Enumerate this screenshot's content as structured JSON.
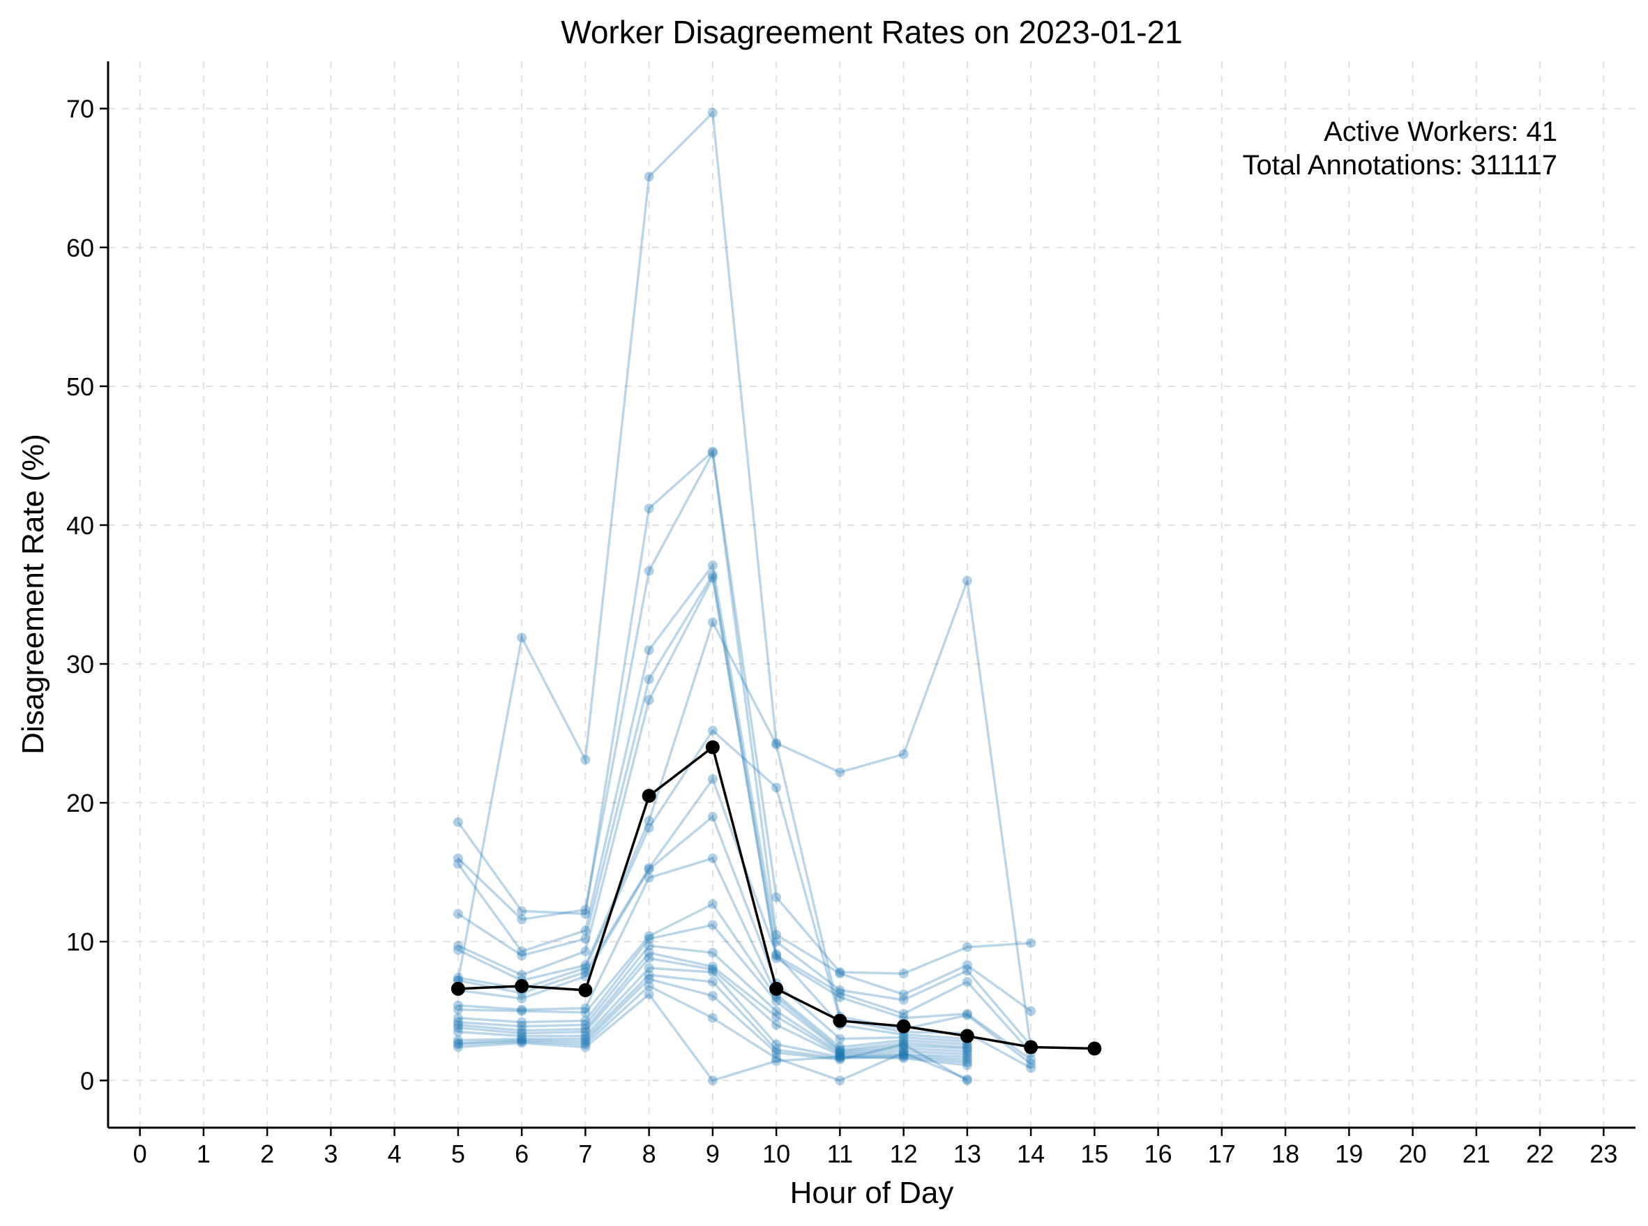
{
  "chart_data": {
    "type": "line",
    "title": "Worker Disagreement Rates on 2023-01-21",
    "xlabel": "Hour of Day",
    "ylabel": "Disagreement Rate (%)",
    "xlim": [
      -0.5,
      23.5
    ],
    "ylim": [
      -3.4,
      73.4
    ],
    "xticks": [
      0,
      1,
      2,
      3,
      4,
      5,
      6,
      7,
      8,
      9,
      10,
      11,
      12,
      13,
      14,
      15,
      16,
      17,
      18,
      19,
      20,
      21,
      22,
      23
    ],
    "yticks": [
      0,
      10,
      20,
      30,
      40,
      50,
      60,
      70
    ],
    "grid": true,
    "annotations": [
      "Active Workers: 41",
      "Total Annotations: 311117"
    ],
    "colors": {
      "worker": "#1f77b4",
      "mean": "#000000"
    },
    "mean_series": {
      "x": [
        5,
        6,
        7,
        8,
        9,
        10,
        11,
        12,
        13,
        14,
        15
      ],
      "values": [
        6.6,
        6.8,
        6.5,
        20.5,
        24.0,
        6.6,
        4.3,
        3.9,
        3.2,
        2.4,
        2.3
      ]
    },
    "worker_series": [
      {
        "x": [
          5,
          6,
          7,
          8,
          9,
          10,
          11,
          12,
          13,
          14
        ],
        "values": [
          7.2,
          31.9,
          23.1,
          65.1,
          69.7,
          24.3,
          22.2,
          23.5,
          36.0,
          2.3
        ]
      },
      {
        "x": [
          5,
          6,
          7,
          8,
          9,
          10,
          11,
          12,
          13,
          14
        ],
        "values": [
          18.6,
          12.2,
          12.0,
          41.2,
          45.3,
          13.2,
          7.8,
          7.7,
          9.6,
          9.9
        ]
      },
      {
        "x": [
          5,
          6,
          7,
          8,
          9,
          10,
          11,
          12,
          13,
          14
        ],
        "values": [
          16.0,
          11.6,
          12.3,
          36.7,
          45.2,
          10.5,
          7.7,
          6.2,
          8.3,
          5.0
        ]
      },
      {
        "x": [
          5,
          6,
          7,
          8,
          9,
          10,
          11,
          12,
          13,
          14
        ],
        "values": [
          15.6,
          9.3,
          10.8,
          31.0,
          37.1,
          10.0,
          6.5,
          5.8,
          7.9,
          2.5
        ]
      },
      {
        "x": [
          5,
          6,
          7,
          8,
          9,
          10,
          11,
          12,
          13,
          14
        ],
        "values": [
          12.0,
          9.0,
          10.2,
          28.9,
          36.4,
          9.0,
          6.3,
          4.8,
          7.1,
          2.0
        ]
      },
      {
        "x": [
          5,
          6,
          7,
          8,
          9,
          10,
          11,
          12,
          13,
          14
        ],
        "values": [
          9.7,
          7.6,
          9.3,
          27.4,
          36.2,
          8.8,
          6.0,
          4.5,
          4.8,
          1.5
        ]
      },
      {
        "x": [
          5,
          6,
          7,
          8,
          9,
          10,
          11,
          12,
          13,
          14
        ],
        "values": [
          9.4,
          7.2,
          8.3,
          18.7,
          33.0,
          24.2,
          4.6,
          3.7,
          4.7,
          1.2
        ]
      },
      {
        "x": [
          5,
          6,
          7,
          8,
          9,
          10,
          11,
          12,
          13,
          14
        ],
        "values": [
          7.4,
          6.6,
          8.1,
          18.2,
          25.2,
          21.1,
          4.4,
          3.5,
          3.4,
          0.9
        ]
      },
      {
        "x": [
          5,
          6,
          7,
          8,
          9,
          10,
          11,
          12,
          13
        ],
        "values": [
          7.2,
          6.3,
          7.8,
          15.3,
          21.7,
          9.1,
          4.0,
          3.3,
          3.0
        ]
      },
      {
        "x": [
          5,
          6,
          7,
          8,
          9,
          10,
          11,
          12,
          13
        ],
        "values": [
          6.5,
          5.9,
          7.5,
          15.2,
          19.0,
          7.0,
          3.0,
          3.1,
          2.8
        ]
      },
      {
        "x": [
          5,
          6,
          7,
          8,
          9,
          10,
          11,
          12,
          13
        ],
        "values": [
          5.4,
          5.1,
          5.2,
          14.6,
          16.0,
          6.2,
          2.4,
          2.9,
          2.6
        ]
      },
      {
        "x": [
          5,
          6,
          7,
          8,
          9,
          10,
          11,
          12,
          13
        ],
        "values": [
          5.1,
          5.0,
          4.9,
          10.4,
          12.7,
          6.0,
          2.2,
          2.7,
          2.4
        ]
      },
      {
        "x": [
          5,
          6,
          7,
          8,
          9,
          10,
          11,
          12,
          13
        ],
        "values": [
          4.5,
          4.2,
          4.3,
          10.2,
          11.2,
          5.7,
          2.1,
          2.5,
          2.3
        ]
      },
      {
        "x": [
          5,
          6,
          7,
          8,
          9,
          10,
          11,
          12,
          13
        ],
        "values": [
          4.2,
          3.9,
          4.0,
          9.7,
          9.2,
          5.0,
          2.0,
          2.3,
          2.1
        ]
      },
      {
        "x": [
          5,
          6,
          7,
          8,
          9,
          10,
          11,
          12,
          13
        ],
        "values": [
          4.0,
          3.6,
          3.7,
          9.2,
          8.2,
          4.6,
          1.9,
          2.1,
          1.9
        ]
      },
      {
        "x": [
          5,
          6,
          7,
          8,
          9,
          10,
          11,
          12,
          13
        ],
        "values": [
          3.8,
          3.4,
          3.5,
          8.8,
          8.0,
          4.0,
          1.8,
          1.9,
          1.7
        ]
      },
      {
        "x": [
          5,
          6,
          7,
          8,
          9,
          10,
          11,
          12,
          13
        ],
        "values": [
          3.5,
          3.2,
          3.2,
          8.1,
          7.8,
          2.6,
          1.7,
          1.8,
          1.5
        ]
      },
      {
        "x": [
          5,
          6,
          7,
          8,
          9,
          10,
          11,
          12,
          13
        ],
        "values": [
          2.9,
          3.0,
          3.0,
          7.6,
          7.1,
          2.2,
          1.6,
          1.7,
          1.3
        ]
      },
      {
        "x": [
          5,
          6,
          7,
          8,
          9,
          10,
          11,
          12,
          13
        ],
        "values": [
          2.7,
          2.9,
          2.8,
          7.3,
          6.1,
          2.0,
          1.5,
          2.6,
          0.0
        ]
      },
      {
        "x": [
          5,
          6,
          7,
          8,
          9,
          10,
          11,
          12,
          13
        ],
        "values": [
          2.6,
          2.8,
          2.6,
          6.8,
          4.5,
          1.6,
          0.0,
          2.0,
          0.1
        ]
      },
      {
        "x": [
          5,
          6,
          7,
          8,
          9,
          10,
          11,
          12,
          13
        ],
        "values": [
          2.4,
          2.7,
          2.4,
          6.2,
          0.0,
          1.4,
          1.7,
          1.6,
          1.1
        ]
      }
    ]
  }
}
